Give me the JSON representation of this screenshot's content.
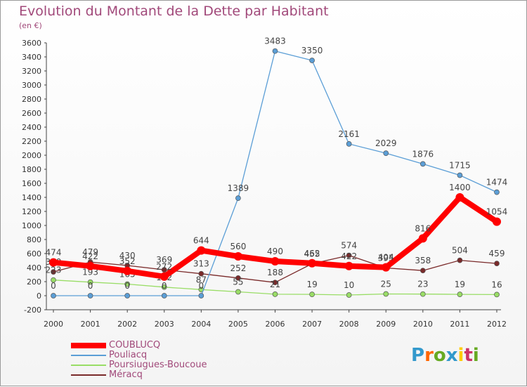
{
  "chart_data": {
    "type": "line",
    "title": "Evolution du Montant de la Dette par Habitant",
    "subtitle": "(en €)",
    "x": [
      "2000",
      "2001",
      "2002",
      "2003",
      "2004",
      "2005",
      "2006",
      "2007",
      "2008",
      "2009",
      "2010",
      "2011",
      "2012"
    ],
    "ylim": [
      -200,
      3600
    ],
    "yticks": [
      -200,
      0,
      200,
      400,
      600,
      800,
      1000,
      1200,
      1400,
      1600,
      1800,
      2000,
      2200,
      2400,
      2600,
      2800,
      3000,
      3200,
      3400,
      3600
    ],
    "grid": false,
    "legend_position": "bottom-left",
    "series": [
      {
        "name": "Méracq",
        "color": "#7a2a2a",
        "values": [
          339,
          479,
          430,
          369,
          313,
          252,
          188,
          455,
          574,
          395,
          358,
          504,
          459
        ]
      },
      {
        "name": "Poursiugues-Boucoue",
        "color": "#99dd66",
        "values": [
          223,
          193,
          165,
          122,
          87,
          55,
          21,
          19,
          10,
          25,
          23,
          19,
          16
        ]
      },
      {
        "name": "Pouliacq",
        "color": "#5b9ed6",
        "values": [
          0,
          0,
          0,
          0,
          0,
          1389,
          3483,
          3350,
          2161,
          2029,
          1876,
          1715,
          1474
        ]
      },
      {
        "name": "COUBLUCQ",
        "color": "#ff0000",
        "values": [
          474,
          422,
          352,
          272,
          644,
          560,
          490,
          462,
          422,
          404,
          816,
          1400,
          1054
        ]
      }
    ]
  },
  "logo": {
    "letters": [
      "P",
      "r",
      "o",
      "x",
      "i",
      "t",
      "i"
    ],
    "colors": [
      "#3399cc",
      "#ff6600",
      "#66aa22",
      "#3399cc",
      "#ffcc00",
      "#cc3366",
      "#66aa22"
    ]
  }
}
